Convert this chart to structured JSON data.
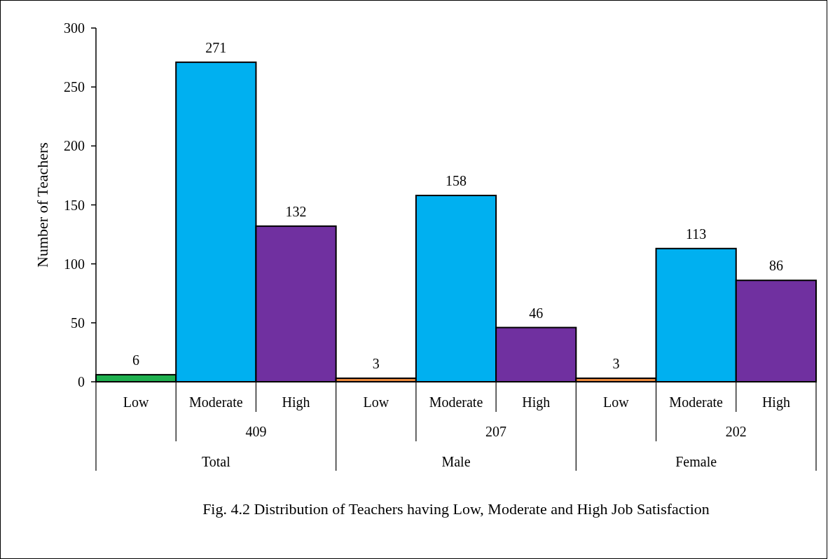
{
  "chart_data": {
    "type": "bar",
    "ylabel": "Number of Teachers",
    "categories": [
      "Low",
      "Moderate",
      "High",
      "Low",
      "Moderate",
      "High",
      "Low",
      "Moderate",
      "High"
    ],
    "values": [
      6,
      271,
      132,
      3,
      158,
      46,
      3,
      113,
      86
    ],
    "colors": [
      "#1fb04f",
      "#00b0f0",
      "#7030a0",
      "#e8883a",
      "#00b0f0",
      "#7030a0",
      "#e8883a",
      "#00b0f0",
      "#7030a0"
    ],
    "ylim": [
      0,
      300
    ],
    "yticks": [
      0,
      50,
      100,
      150,
      200,
      250,
      300
    ],
    "data_labels": true,
    "grid": false,
    "annotations": [
      "409",
      "207",
      "202",
      "Total",
      "Male",
      "Female",
      "Fig. 4.2 Distribution of Teachers having Low, Moderate and High Job Satisfaction"
    ]
  }
}
